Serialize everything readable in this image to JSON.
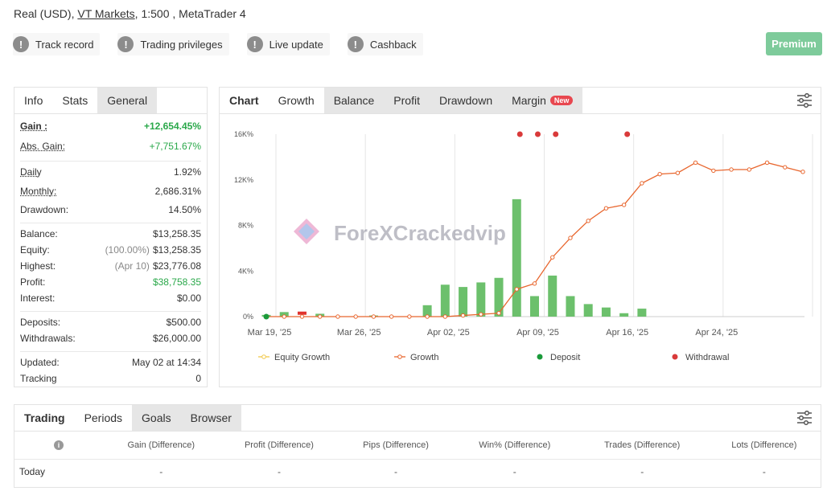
{
  "account": {
    "type": "Real (USD)",
    "broker": "VT Markets",
    "leverage": "1:500",
    "platform": "MetaTrader 4"
  },
  "toolbar": [
    {
      "label": "Track record",
      "icon": "exclamation-icon"
    },
    {
      "label": "Trading privileges",
      "icon": "exclamation-icon"
    },
    {
      "label": "Live update",
      "icon": "exclamation-icon"
    },
    {
      "label": "Cashback",
      "icon": "exclamation-icon"
    }
  ],
  "premium_label": "Premium",
  "info_panel": {
    "tabs": [
      "Info",
      "Stats",
      "General"
    ],
    "gain_label": "Gain :",
    "gain_value": "+12,654.45%",
    "abs_gain_label": "Abs. Gain:",
    "abs_gain_value": "+7,751.67%",
    "daily_label": "Daily",
    "daily_value": "1.92%",
    "monthly_label": "Monthly:",
    "monthly_value": "2,686.31%",
    "drawdown_label": "Drawdown:",
    "drawdown_value": "14.50%",
    "balance_label": "Balance:",
    "balance_value": "$13,258.35",
    "equity_label": "Equity:",
    "equity_note": "(100.00%)",
    "equity_value": "$13,258.35",
    "highest_label": "Highest:",
    "highest_note": "(Apr 10)",
    "highest_value": "$23,776.08",
    "profit_label": "Profit:",
    "profit_value": "$38,758.35",
    "interest_label": "Interest:",
    "interest_value": "$0.00",
    "deposits_label": "Deposits:",
    "deposits_value": "$500.00",
    "withdrawals_label": "Withdrawals:",
    "withdrawals_value": "$26,000.00",
    "updated_label": "Updated:",
    "updated_value": "May 02 at 14:34",
    "tracking_label": "Tracking",
    "tracking_value": "0"
  },
  "chart_panel": {
    "tabs": [
      "Chart",
      "Growth",
      "Balance",
      "Profit",
      "Drawdown",
      "Margin"
    ],
    "new_badge": "New",
    "settings_icon": "sliders-icon"
  },
  "watermark": "ForeXCrackedvip",
  "chart_data": {
    "type": "line",
    "y_ticks": [
      "0%",
      "4K%",
      "8K%",
      "12K%",
      "16K%"
    ],
    "ylim": [
      0,
      16000
    ],
    "x_ticks": [
      "Mar 19, '25",
      "Mar 26, '25",
      "Apr 02, '25",
      "Apr 09, '25",
      "Apr 16, '25",
      "Apr 24, '25"
    ],
    "grid": "vertical",
    "legend": [
      "Equity Growth",
      "Growth",
      "Deposit",
      "Withdrawal"
    ],
    "legend_position": "bottom",
    "colors": {
      "growth": "#e8662e",
      "equity": "#f2c94c",
      "bar_pos": "#6cc06c",
      "bar_neg": "#e0332e",
      "deposit": "#1a9a3a",
      "withdrawal": "#d93a3a",
      "grid": "#e6e6e6"
    },
    "growth_points": [
      {
        "i": 0,
        "v": 0
      },
      {
        "i": 1,
        "v": 0
      },
      {
        "i": 2,
        "v": 0
      },
      {
        "i": 3,
        "v": 0
      },
      {
        "i": 4,
        "v": 0
      },
      {
        "i": 5,
        "v": 0
      },
      {
        "i": 6,
        "v": 0
      },
      {
        "i": 7,
        "v": 0
      },
      {
        "i": 8,
        "v": 0
      },
      {
        "i": 9,
        "v": 0
      },
      {
        "i": 10,
        "v": 0
      },
      {
        "i": 11,
        "v": 100
      },
      {
        "i": 12,
        "v": 200
      },
      {
        "i": 13,
        "v": 300
      },
      {
        "i": 14,
        "v": 2400
      },
      {
        "i": 15,
        "v": 2900
      },
      {
        "i": 16,
        "v": 5200
      },
      {
        "i": 17,
        "v": 6900
      },
      {
        "i": 18,
        "v": 8400
      },
      {
        "i": 19,
        "v": 9500
      },
      {
        "i": 20,
        "v": 9800
      },
      {
        "i": 21,
        "v": 11700
      },
      {
        "i": 22,
        "v": 12500
      },
      {
        "i": 23,
        "v": 12600
      },
      {
        "i": 24,
        "v": 13500
      },
      {
        "i": 25,
        "v": 12800
      },
      {
        "i": 26,
        "v": 12900
      },
      {
        "i": 27,
        "v": 12900
      },
      {
        "i": 28,
        "v": 13500
      },
      {
        "i": 29,
        "v": 13100
      },
      {
        "i": 30,
        "v": 12700
      }
    ],
    "bars": [
      {
        "i": 0,
        "v": 150
      },
      {
        "i": 1,
        "v": 400
      },
      {
        "i": 2,
        "v": -300
      },
      {
        "i": 3,
        "v": 250
      },
      {
        "i": 6,
        "v": 100
      },
      {
        "i": 9,
        "v": 1000
      },
      {
        "i": 10,
        "v": 2800
      },
      {
        "i": 11,
        "v": 2600
      },
      {
        "i": 12,
        "v": 3000
      },
      {
        "i": 13,
        "v": 3400
      },
      {
        "i": 14,
        "v": 10300
      },
      {
        "i": 15,
        "v": 1800
      },
      {
        "i": 16,
        "v": 3600
      },
      {
        "i": 17,
        "v": 1800
      },
      {
        "i": 18,
        "v": 1100
      },
      {
        "i": 19,
        "v": 800
      },
      {
        "i": 20,
        "v": 300
      },
      {
        "i": 21,
        "v": 700
      }
    ],
    "deposits": [
      {
        "i": 0
      }
    ],
    "withdrawals": [
      {
        "i": 14
      },
      {
        "i": 15
      },
      {
        "i": 16
      },
      {
        "i": 20
      }
    ]
  },
  "bottom_panel": {
    "tabs": [
      "Trading",
      "Periods",
      "Goals",
      "Browser"
    ],
    "columns": [
      "Gain (Difference)",
      "Profit (Difference)",
      "Pips (Difference)",
      "Win% (Difference)",
      "Trades (Difference)",
      "Lots (Difference)"
    ],
    "info_icon": "info-icon",
    "rows": [
      {
        "label": "Today",
        "values": [
          "-",
          "-",
          "-",
          "-",
          "-",
          "-"
        ]
      }
    ]
  }
}
